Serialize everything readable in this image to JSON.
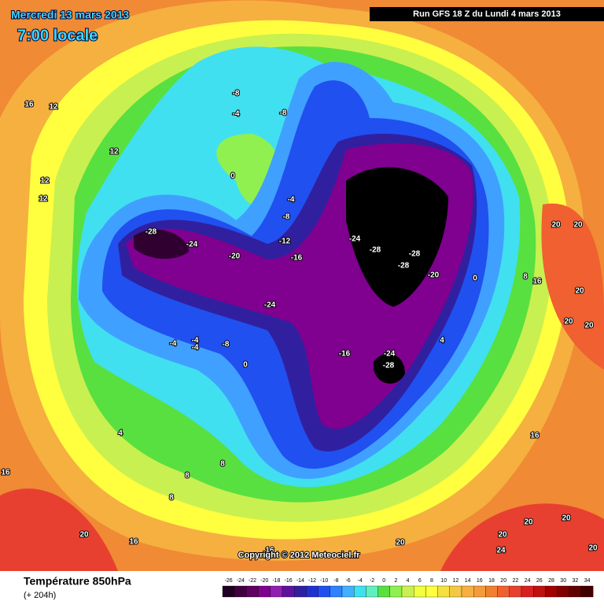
{
  "header": {
    "date": "Mercredi 13 mars 2013",
    "time": "7:00 locale",
    "run": "Run GFS 18 Z du Lundi 4 mars 2013"
  },
  "copyright": "Copyright © 2012 Meteociel.fr",
  "footer": {
    "title": "Température 850hPa",
    "lead": "(+ 204h)"
  },
  "legend": {
    "values": [
      -26,
      -24,
      -22,
      -20,
      -18,
      -16,
      -14,
      -12,
      -10,
      -8,
      -6,
      -4,
      -2,
      0,
      2,
      4,
      6,
      8,
      10,
      12,
      14,
      16,
      18,
      20,
      22,
      24,
      26,
      28,
      30,
      32,
      34
    ],
    "colors": [
      "#200020",
      "#400040",
      "#600060",
      "#800090",
      "#9020b0",
      "#6010a0",
      "#3020a0",
      "#2030d0",
      "#2050f0",
      "#3080ff",
      "#40b0ff",
      "#40e0f0",
      "#60f0c0",
      "#58e040",
      "#90f050",
      "#c8f050",
      "#f0ff40",
      "#ffff40",
      "#f5e040",
      "#f5c842",
      "#f5b040",
      "#f59b3a",
      "#f08030",
      "#f06030",
      "#e84030",
      "#d82020",
      "#c01010",
      "#a00000",
      "#800000",
      "#600000",
      "#400000"
    ]
  },
  "map_labels": [
    16,
    12,
    12,
    12,
    12,
    -8,
    -4,
    -8,
    0,
    -4,
    -8,
    -28,
    -24,
    -20,
    -12,
    -16,
    -24,
    -28,
    -28,
    -28,
    -20,
    0,
    8,
    16,
    20,
    20,
    20,
    20,
    20,
    -24,
    -4,
    -4,
    -4,
    -8,
    0,
    -16,
    -24,
    -28,
    4,
    4,
    16,
    8,
    8,
    8,
    16,
    20,
    16,
    16,
    20,
    20,
    20,
    20,
    24,
    20
  ]
}
